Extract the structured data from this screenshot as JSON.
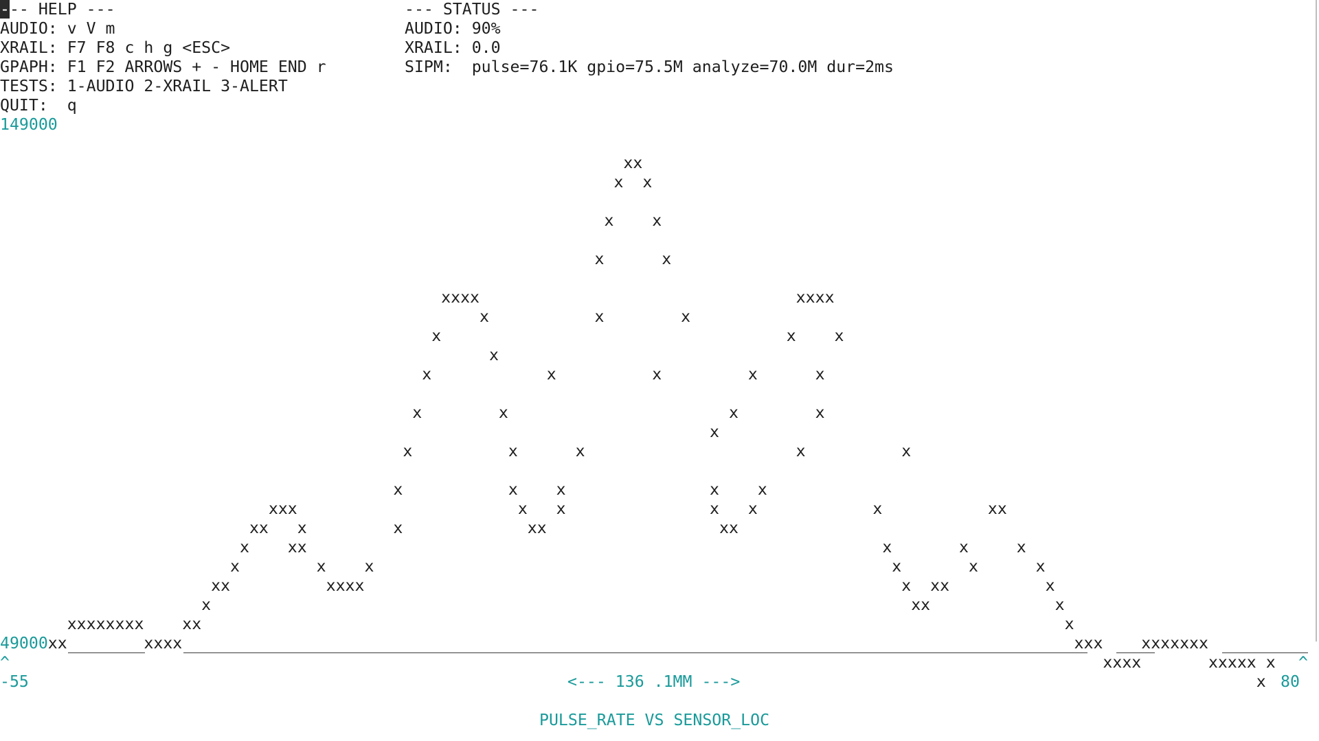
{
  "help": {
    "header": "--- HELP ---",
    "lines": [
      "AUDIO: v V m",
      "XRAIL: F7 F8 c h g <ESC>",
      "GPAPH: F1 F2 ARROWS + - HOME END r",
      "TESTS: 1-AUDIO 2-XRAIL 3-ALERT",
      "QUIT:  q"
    ]
  },
  "status": {
    "header": "--- STATUS ---",
    "audio": "AUDIO: 90%",
    "xrail": "XRAIL: 0.0",
    "sipm": "SIPM:  pulse=76.1K gpio=75.5M analyze=70.0M dur=2ms"
  },
  "graph": {
    "y_max_label": "149000",
    "y_min_label": "49000",
    "x_min_label": "-55",
    "x_max_label": "80",
    "x_span_label": "<--- 136 .1MM --->",
    "title": "PULSE_RATE VS SENSOR_LOC",
    "left_marker": "^",
    "right_marker": "^",
    "plot_rows": [
      {
        "line": 8,
        "text": "                                                                 xx"
      },
      {
        "line": 9,
        "text": "                                                                x  x"
      },
      {
        "line": 11,
        "text": "                                                               x    x"
      },
      {
        "line": 13,
        "text": "                                                              x      x"
      },
      {
        "line": 15,
        "text": "                                              xxxx                                 xxxx"
      },
      {
        "line": 16,
        "text": "                                                  x           x        x"
      },
      {
        "line": 17,
        "text": "                                             x                                    x    x"
      },
      {
        "line": 18,
        "text": "                                                   x"
      },
      {
        "line": 19,
        "text": "                                            x            x          x         x      x"
      },
      {
        "line": 21,
        "text": "                                           x        x                       x        x"
      },
      {
        "line": 22,
        "text": "                                                                          x"
      },
      {
        "line": 23,
        "text": "                                          x          x      x                      x          x"
      },
      {
        "line": 25,
        "text": "                                         x           x    x               x    x"
      },
      {
        "line": 26,
        "text": "                            xxx                       x   x               x   x            x           xx"
      },
      {
        "line": 27,
        "text": "                          xx   x         x             xx                  xx"
      },
      {
        "line": 28,
        "text": "                         x    xx                                                            x       x     x"
      },
      {
        "line": 29,
        "text": "                        x        x    x                                                      x       x      x"
      },
      {
        "line": 30,
        "text": "                      xx          xxxx                                                        x  xx          x"
      },
      {
        "line": 31,
        "text": "                     x                                                                         xx             x"
      },
      {
        "line": 32,
        "text": "       xxxxxxxx    xx                                                                                          x"
      },
      {
        "line": 33,
        "text": "     xx        xxxx                                                                                             xxx    xxxxxxx"
      },
      {
        "line": 34,
        "text": "                                                                                                                   xxxx       xxxxx x"
      },
      {
        "line": 35,
        "text": "                                                                                                                                   x"
      }
    ]
  }
}
